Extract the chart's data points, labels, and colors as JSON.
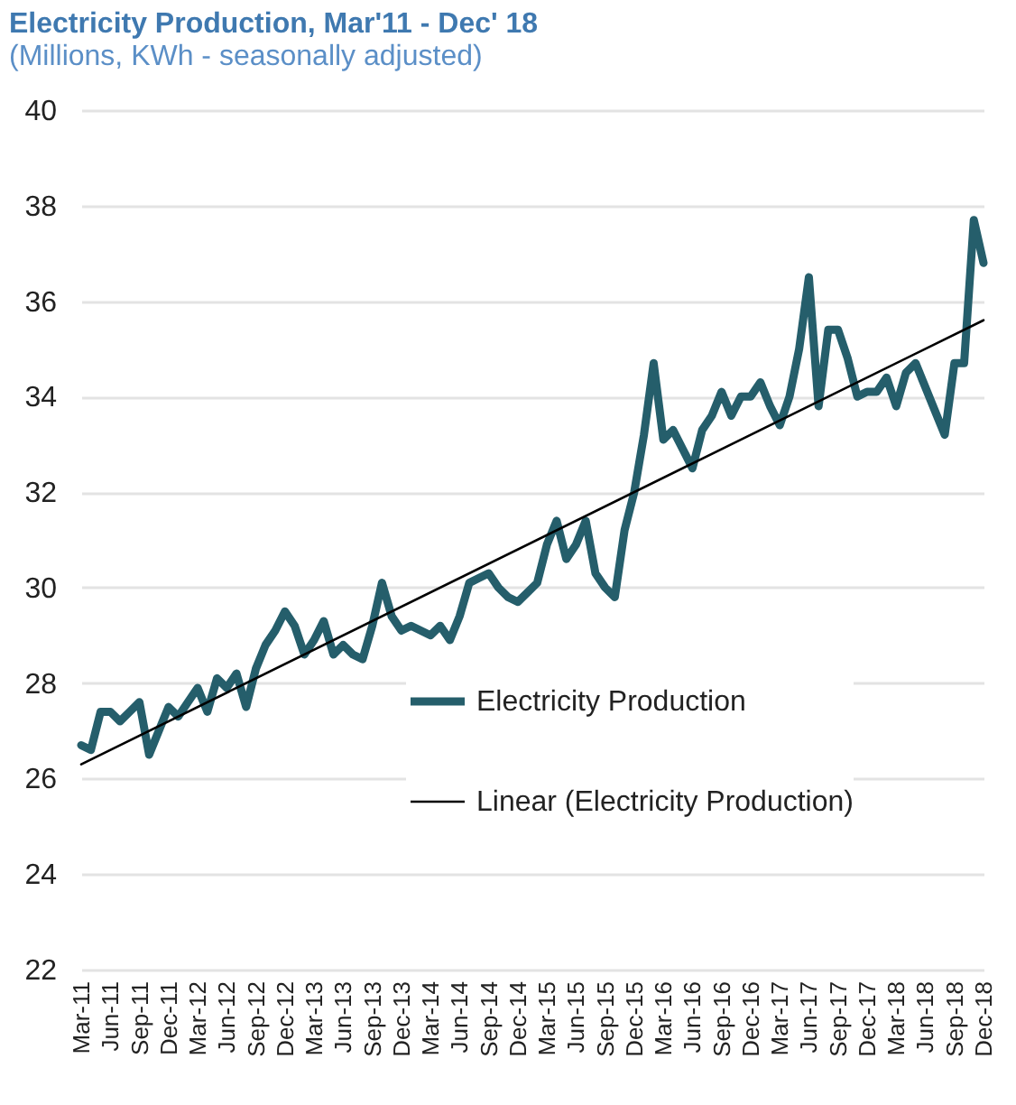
{
  "chart_data": {
    "type": "line",
    "title": "Electricity Production, Mar'11 - Dec' 18",
    "subtitle": "(Millions, KWh - seasonally adjusted)",
    "categories": [
      "Mar-11",
      null,
      null,
      "Jun-11",
      null,
      null,
      "Sep-11",
      null,
      null,
      "Dec-11",
      null,
      null,
      "Mar-12",
      null,
      null,
      "Jun-12",
      null,
      null,
      "Sep-12",
      null,
      null,
      "Dec-12",
      null,
      null,
      "Mar-13",
      null,
      null,
      "Jun-13",
      null,
      null,
      "Sep-13",
      null,
      null,
      "Dec-13",
      null,
      null,
      "Mar-14",
      null,
      null,
      "Jun-14",
      null,
      null,
      "Sep-14",
      null,
      null,
      "Dec-14",
      null,
      null,
      "Mar-15",
      null,
      null,
      "Jun-15",
      null,
      null,
      "Sep-15",
      null,
      null,
      "Dec-15",
      null,
      null,
      "Mar-16",
      null,
      null,
      "Jun-16",
      null,
      null,
      "Sep-16",
      null,
      null,
      "Dec-16",
      null,
      null,
      "Mar-17",
      null,
      null,
      "Jun-17",
      null,
      null,
      "Sep-17",
      null,
      null,
      "Dec-17",
      null,
      null,
      "Mar-18",
      null,
      null,
      "Jun-18",
      null,
      null,
      "Sep-18",
      null,
      null,
      "Dec-18"
    ],
    "series": [
      {
        "name": "Electricity Production",
        "color": "#255e6b",
        "values": [
          26.7,
          26.6,
          27.4,
          27.4,
          27.2,
          27.4,
          27.6,
          26.5,
          27.0,
          27.5,
          27.3,
          27.6,
          27.9,
          27.4,
          28.1,
          27.9,
          28.2,
          27.5,
          28.3,
          28.8,
          29.1,
          29.5,
          29.2,
          28.6,
          28.9,
          29.3,
          28.6,
          28.8,
          28.6,
          28.5,
          29.2,
          30.1,
          29.4,
          29.1,
          29.2,
          29.1,
          29.0,
          29.2,
          28.9,
          29.4,
          30.1,
          30.2,
          30.3,
          30.0,
          29.8,
          29.7,
          29.9,
          30.1,
          30.9,
          31.4,
          30.6,
          30.9,
          31.4,
          30.3,
          30.0,
          29.8,
          31.2,
          32.0,
          33.2,
          34.7,
          33.1,
          33.3,
          32.9,
          32.5,
          33.3,
          33.6,
          34.1,
          33.6,
          34.0,
          34.0,
          34.3,
          33.8,
          33.4,
          34.0,
          35.0,
          36.5,
          33.8,
          35.4,
          35.4,
          34.8,
          34.0,
          34.1,
          34.1,
          34.4,
          33.8,
          34.5,
          34.7,
          34.2,
          33.7,
          33.2,
          34.7,
          34.7,
          37.7,
          36.8
        ]
      },
      {
        "name": "Linear (Electricity Production)",
        "color": "#000000",
        "values": [
          26.3,
          null,
          null,
          null,
          null,
          null,
          null,
          null,
          null,
          null,
          null,
          null,
          null,
          null,
          null,
          null,
          null,
          null,
          null,
          null,
          null,
          null,
          null,
          null,
          null,
          null,
          null,
          null,
          null,
          null,
          null,
          null,
          null,
          null,
          null,
          null,
          null,
          null,
          null,
          null,
          null,
          null,
          null,
          null,
          null,
          null,
          null,
          null,
          null,
          null,
          null,
          null,
          null,
          null,
          null,
          null,
          null,
          null,
          null,
          null,
          null,
          null,
          null,
          null,
          null,
          null,
          null,
          null,
          null,
          null,
          null,
          null,
          null,
          null,
          null,
          null,
          null,
          null,
          null,
          null,
          null,
          null,
          null,
          null,
          null,
          null,
          null,
          null,
          null,
          null,
          null,
          null,
          null,
          35.6
        ]
      }
    ],
    "ylim": [
      22,
      40
    ],
    "yticks": [
      22,
      24,
      26,
      28,
      30,
      32,
      34,
      36,
      38,
      40
    ],
    "grid": "y",
    "legend": "right"
  }
}
